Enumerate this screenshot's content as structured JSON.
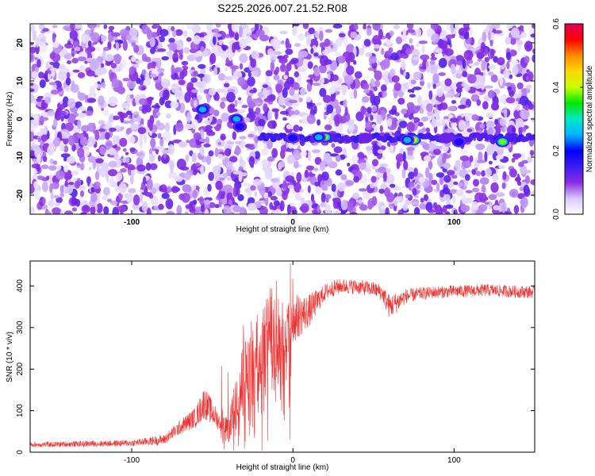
{
  "title": "S225.2026.007.21.52.R08",
  "chart_data": [
    {
      "type": "heatmap",
      "xlabel": "Height of straight line (km)",
      "ylabel": "Frequency (Hz)",
      "xlim": [
        -163,
        150
      ],
      "ylim": [
        -25,
        25
      ],
      "xticks": [
        -100,
        0,
        100
      ],
      "yticks": [
        -20,
        -10,
        0,
        10,
        20
      ],
      "colorbar": {
        "label": "Normalized spectral amplitude",
        "range": [
          0,
          0.6
        ],
        "ticks": [
          0.0,
          0.2,
          0.4,
          0.6
        ],
        "tick_labels": [
          "0.0",
          "0.2",
          "0.4",
          "0.6"
        ],
        "colormap": [
          "#ffffff",
          "#d9c8ff",
          "#8a2be2",
          "#3c1cf0",
          "#0000ff",
          "#00b4ff",
          "#00e8c8",
          "#00e600",
          "#c8ff00",
          "#ffd700",
          "#ff8c00",
          "#ff0000",
          "#e0005a"
        ]
      },
      "hotspots": [
        {
          "x": -56,
          "y": 2.5,
          "v": 0.28
        },
        {
          "x": -35,
          "y": 0.0,
          "v": 0.25
        },
        {
          "x": -33,
          "y": -2.0,
          "v": 0.22
        },
        {
          "x": 20,
          "y": -4.8,
          "v": 0.42
        },
        {
          "x": 16,
          "y": -4.8,
          "v": 0.25
        },
        {
          "x": 75,
          "y": -5.5,
          "v": 0.45
        },
        {
          "x": 71,
          "y": -5.5,
          "v": 0.25
        },
        {
          "x": 130,
          "y": -6.0,
          "v": 0.42
        },
        {
          "x": 103,
          "y": -6.0,
          "v": 0.22
        },
        {
          "x": 0,
          "y": -5.0,
          "v": 0.18
        },
        {
          "x": 45,
          "y": -5.0,
          "v": 0.17
        },
        {
          "x": 95,
          "y": -5.0,
          "v": 0.17
        }
      ]
    },
    {
      "type": "line",
      "xlabel": "Height of straight line (km)",
      "ylabel": "SNR (10 * v/v)",
      "xlim": [
        -163,
        150
      ],
      "ylim": [
        0,
        460
      ],
      "xticks": [
        -100,
        0,
        100
      ],
      "yticks": [
        0,
        100,
        200,
        300,
        400
      ],
      "line_color": "#ee3333",
      "series_profile": {
        "x": [
          -163,
          -100,
          -80,
          -70,
          -60,
          -55,
          -50,
          -45,
          -40,
          -35,
          -30,
          -25,
          -20,
          -15,
          -12,
          -10,
          -5,
          0,
          10,
          20,
          25,
          30,
          40,
          50,
          55,
          60,
          65,
          70,
          80,
          90,
          100,
          110,
          120,
          130,
          140,
          150
        ],
        "y": [
          18,
          22,
          30,
          60,
          85,
          120,
          95,
          70,
          55,
          120,
          180,
          220,
          250,
          280,
          300,
          260,
          290,
          320,
          340,
          385,
          395,
          400,
          398,
          392,
          385,
          350,
          362,
          375,
          382,
          385,
          387,
          388,
          390,
          388,
          386,
          385
        ],
        "noise": [
          6,
          8,
          12,
          18,
          25,
          40,
          30,
          20,
          30,
          70,
          90,
          110,
          120,
          120,
          120,
          100,
          80,
          60,
          40,
          20,
          20,
          18,
          18,
          18,
          20,
          30,
          25,
          18,
          15,
          15,
          15,
          15,
          15,
          15,
          15,
          15
        ]
      }
    }
  ]
}
